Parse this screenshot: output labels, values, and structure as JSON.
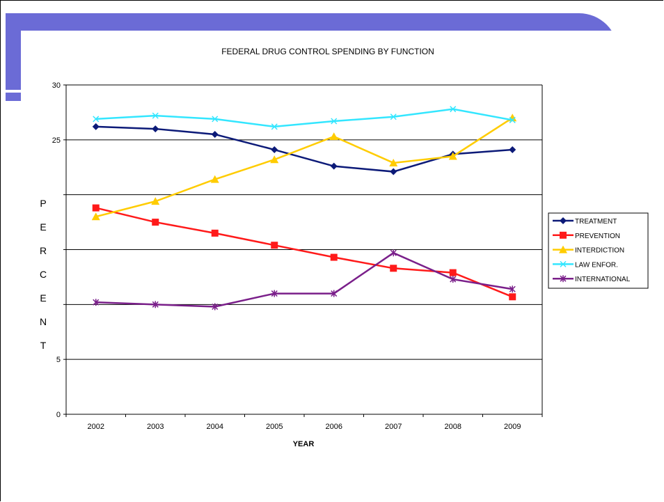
{
  "chart_data": {
    "type": "line",
    "title": "FEDERAL DRUG CONTROL SPENDING BY FUNCTION",
    "xlabel": "YEAR",
    "ylabel": "PERCENT",
    "categories": [
      "2002",
      "2003",
      "2004",
      "2005",
      "2006",
      "2007",
      "2008",
      "2009"
    ],
    "ylim": [
      0,
      30
    ],
    "yticks": [
      "0",
      "5",
      "",
      "",
      "",
      "25",
      "30"
    ],
    "grid": true,
    "legend_position": "right",
    "series": [
      {
        "name": "TREATMENT",
        "color": "#0c1a78",
        "marker": "diamond",
        "values": [
          26.2,
          26.0,
          25.5,
          24.1,
          22.6,
          22.1,
          23.7,
          24.1
        ]
      },
      {
        "name": "PREVENTION",
        "color": "#ff1a1a",
        "marker": "square",
        "values": [
          18.8,
          17.5,
          16.5,
          15.4,
          14.3,
          13.3,
          12.9,
          10.7
        ]
      },
      {
        "name": "INTERDICTION",
        "color": "#ffcc00",
        "marker": "triangle",
        "values": [
          18.0,
          19.4,
          21.4,
          23.2,
          25.3,
          22.9,
          23.5,
          27.0
        ]
      },
      {
        "name": "LAW ENFOR.",
        "color": "#33e6ff",
        "marker": "x",
        "values": [
          26.9,
          27.2,
          26.9,
          26.2,
          26.7,
          27.1,
          27.8,
          26.8
        ]
      },
      {
        "name": "INTERNATIONAL",
        "color": "#7a1f8a",
        "marker": "star",
        "values": [
          10.2,
          10.0,
          9.8,
          11.0,
          11.0,
          14.7,
          12.3,
          11.4
        ]
      }
    ]
  }
}
